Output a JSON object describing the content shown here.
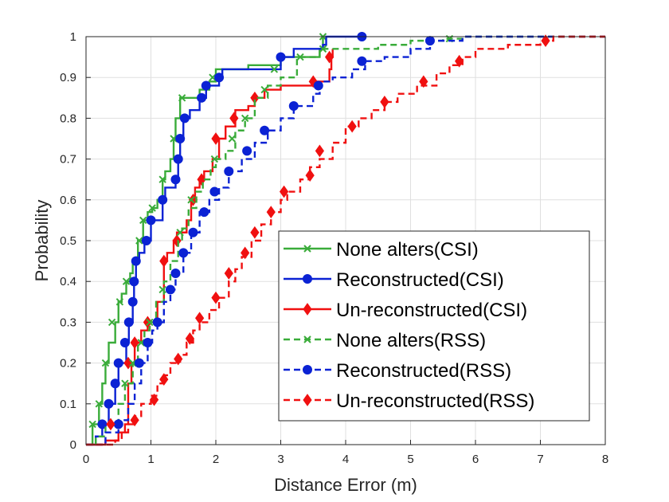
{
  "chart_data": {
    "type": "line",
    "title": "",
    "xlabel": "Distance Error (m)",
    "ylabel": "Probability",
    "xlim": [
      0,
      8
    ],
    "ylim": [
      0,
      1
    ],
    "xticks": [
      0,
      1,
      2,
      3,
      4,
      5,
      6,
      7,
      8
    ],
    "yticks": [
      0,
      0.1,
      0.2,
      0.3,
      0.4,
      0.5,
      0.6,
      0.7,
      0.8,
      0.9,
      1
    ],
    "xtick_labels": [
      "0",
      "1",
      "2",
      "3",
      "4",
      "5",
      "6",
      "7",
      "8"
    ],
    "ytick_labels": [
      "0",
      "0.1",
      "0.2",
      "0.3",
      "0.4",
      "0.5",
      "0.6",
      "0.7",
      "0.8",
      "0.9",
      "1"
    ],
    "grid": true,
    "legend_position": "lower-right",
    "series": [
      {
        "name": "None alters(CSI)",
        "color": "#3aac3a",
        "dash": "solid",
        "marker": "x",
        "points": [
          [
            0,
            0
          ],
          [
            0.1,
            0.05
          ],
          [
            0.2,
            0.1
          ],
          [
            0.25,
            0.15
          ],
          [
            0.3,
            0.2
          ],
          [
            0.35,
            0.25
          ],
          [
            0.45,
            0.3
          ],
          [
            0.5,
            0.35
          ],
          [
            0.55,
            0.37
          ],
          [
            0.62,
            0.4
          ],
          [
            0.68,
            0.42
          ],
          [
            0.72,
            0.45
          ],
          [
            0.8,
            0.5
          ],
          [
            0.88,
            0.55
          ],
          [
            0.95,
            0.57
          ],
          [
            1.02,
            0.58
          ],
          [
            1.1,
            0.6
          ],
          [
            1.18,
            0.65
          ],
          [
            1.22,
            0.67
          ],
          [
            1.3,
            0.7
          ],
          [
            1.35,
            0.75
          ],
          [
            1.38,
            0.8
          ],
          [
            1.45,
            0.85
          ],
          [
            1.6,
            0.85
          ],
          [
            1.75,
            0.87
          ],
          [
            1.9,
            0.89
          ],
          [
            2.0,
            0.92
          ],
          [
            2.5,
            0.93
          ],
          [
            3.0,
            0.95
          ],
          [
            3.6,
            0.97
          ],
          [
            3.65,
            1.0
          ]
        ],
        "markers": [
          [
            0.1,
            0.05
          ],
          [
            0.2,
            0.1
          ],
          [
            0.3,
            0.2
          ],
          [
            0.4,
            0.3
          ],
          [
            0.52,
            0.35
          ],
          [
            0.62,
            0.4
          ],
          [
            0.82,
            0.5
          ],
          [
            0.88,
            0.55
          ],
          [
            1.02,
            0.58
          ],
          [
            1.18,
            0.65
          ],
          [
            1.35,
            0.75
          ],
          [
            1.48,
            0.85
          ],
          [
            1.95,
            0.9
          ],
          [
            3.65,
            1.0
          ]
        ]
      },
      {
        "name": "Reconstructed(CSI)",
        "color": "#0b22d4",
        "dash": "solid",
        "marker": "o",
        "points": [
          [
            0,
            0
          ],
          [
            0.15,
            0.02
          ],
          [
            0.25,
            0.05
          ],
          [
            0.3,
            0.05
          ],
          [
            0.35,
            0.1
          ],
          [
            0.45,
            0.15
          ],
          [
            0.5,
            0.2
          ],
          [
            0.62,
            0.25
          ],
          [
            0.66,
            0.3
          ],
          [
            0.72,
            0.35
          ],
          [
            0.74,
            0.4
          ],
          [
            0.77,
            0.45
          ],
          [
            0.82,
            0.47
          ],
          [
            0.9,
            0.5
          ],
          [
            1.0,
            0.55
          ],
          [
            1.18,
            0.6
          ],
          [
            1.22,
            0.63
          ],
          [
            1.38,
            0.65
          ],
          [
            1.42,
            0.7
          ],
          [
            1.45,
            0.75
          ],
          [
            1.5,
            0.8
          ],
          [
            1.6,
            0.82
          ],
          [
            1.75,
            0.85
          ],
          [
            1.85,
            0.88
          ],
          [
            2.05,
            0.9
          ],
          [
            2.1,
            0.92
          ],
          [
            3.0,
            0.95
          ],
          [
            3.2,
            0.97
          ],
          [
            3.65,
            0.98
          ],
          [
            3.7,
            1.0
          ],
          [
            4.25,
            1.0
          ]
        ],
        "markers": [
          [
            0.25,
            0.05
          ],
          [
            0.35,
            0.1
          ],
          [
            0.45,
            0.15
          ],
          [
            0.5,
            0.2
          ],
          [
            0.6,
            0.25
          ],
          [
            0.66,
            0.3
          ],
          [
            0.72,
            0.35
          ],
          [
            0.74,
            0.4
          ],
          [
            0.77,
            0.45
          ],
          [
            0.93,
            0.5
          ],
          [
            1.0,
            0.55
          ],
          [
            1.18,
            0.6
          ],
          [
            1.38,
            0.65
          ],
          [
            1.42,
            0.7
          ],
          [
            1.45,
            0.75
          ],
          [
            1.52,
            0.8
          ],
          [
            1.78,
            0.85
          ],
          [
            1.85,
            0.88
          ],
          [
            2.05,
            0.9
          ],
          [
            3.0,
            0.95
          ],
          [
            4.25,
            1.0
          ]
        ]
      },
      {
        "name": "Un-reconstructed(CSI)",
        "color": "#f01010",
        "dash": "solid",
        "marker": "d",
        "points": [
          [
            0,
            0
          ],
          [
            0.3,
            0.01
          ],
          [
            0.5,
            0.03
          ],
          [
            0.6,
            0.05
          ],
          [
            0.65,
            0.15
          ],
          [
            0.7,
            0.2
          ],
          [
            0.75,
            0.25
          ],
          [
            0.85,
            0.28
          ],
          [
            0.95,
            0.3
          ],
          [
            1.1,
            0.35
          ],
          [
            1.2,
            0.45
          ],
          [
            1.25,
            0.47
          ],
          [
            1.35,
            0.5
          ],
          [
            1.4,
            0.52
          ],
          [
            1.55,
            0.55
          ],
          [
            1.62,
            0.6
          ],
          [
            1.68,
            0.63
          ],
          [
            1.75,
            0.65
          ],
          [
            1.82,
            0.67
          ],
          [
            1.95,
            0.7
          ],
          [
            2.05,
            0.75
          ],
          [
            2.15,
            0.78
          ],
          [
            2.3,
            0.82
          ],
          [
            2.4,
            0.82
          ],
          [
            2.5,
            0.83
          ],
          [
            2.6,
            0.85
          ],
          [
            2.75,
            0.87
          ],
          [
            3.0,
            0.88
          ],
          [
            3.5,
            0.89
          ],
          [
            3.75,
            0.92
          ],
          [
            3.78,
            0.95
          ],
          [
            3.8,
            0.97
          ]
        ],
        "markers": [
          [
            0.65,
            0.2
          ],
          [
            0.75,
            0.25
          ],
          [
            0.95,
            0.3
          ],
          [
            1.2,
            0.45
          ],
          [
            1.4,
            0.5
          ],
          [
            1.65,
            0.6
          ],
          [
            1.78,
            0.65
          ],
          [
            2.0,
            0.75
          ],
          [
            2.28,
            0.8
          ],
          [
            2.6,
            0.85
          ],
          [
            3.5,
            0.89
          ],
          [
            3.75,
            0.95
          ]
        ]
      },
      {
        "name": "None alters(RSS)",
        "color": "#3aac3a",
        "dash": "dashed",
        "marker": "x",
        "points": [
          [
            0,
            0
          ],
          [
            0.15,
            0.02
          ],
          [
            0.3,
            0.05
          ],
          [
            0.5,
            0.1
          ],
          [
            0.6,
            0.15
          ],
          [
            0.72,
            0.2
          ],
          [
            0.8,
            0.25
          ],
          [
            0.9,
            0.28
          ],
          [
            0.98,
            0.3
          ],
          [
            1.08,
            0.35
          ],
          [
            1.2,
            0.4
          ],
          [
            1.3,
            0.45
          ],
          [
            1.42,
            0.5
          ],
          [
            1.48,
            0.53
          ],
          [
            1.58,
            0.58
          ],
          [
            1.7,
            0.62
          ],
          [
            1.8,
            0.65
          ],
          [
            1.92,
            0.68
          ],
          [
            2.0,
            0.7
          ],
          [
            2.15,
            0.72
          ],
          [
            2.3,
            0.77
          ],
          [
            2.45,
            0.8
          ],
          [
            2.6,
            0.85
          ],
          [
            2.8,
            0.88
          ],
          [
            3.0,
            0.9
          ],
          [
            3.25,
            0.95
          ],
          [
            3.6,
            0.97
          ],
          [
            4.0,
            0.97
          ],
          [
            4.5,
            0.98
          ],
          [
            5.0,
            0.99
          ],
          [
            5.5,
            0.995
          ],
          [
            5.8,
            1.0
          ],
          [
            8,
            1.0
          ]
        ],
        "markers": [
          [
            0.6,
            0.15
          ],
          [
            0.72,
            0.2
          ],
          [
            0.85,
            0.25
          ],
          [
            0.98,
            0.3
          ],
          [
            1.18,
            0.38
          ],
          [
            1.45,
            0.52
          ],
          [
            1.62,
            0.6
          ],
          [
            1.98,
            0.7
          ],
          [
            2.25,
            0.75
          ],
          [
            2.45,
            0.8
          ],
          [
            2.75,
            0.87
          ],
          [
            2.9,
            0.92
          ],
          [
            3.3,
            0.95
          ],
          [
            3.65,
            0.97
          ],
          [
            5.6,
            0.995
          ]
        ]
      },
      {
        "name": "Reconstructed(RSS)",
        "color": "#0b22d4",
        "dash": "dashed",
        "marker": "o",
        "points": [
          [
            0,
            0
          ],
          [
            0.3,
            0.03
          ],
          [
            0.5,
            0.06
          ],
          [
            0.65,
            0.1
          ],
          [
            0.75,
            0.15
          ],
          [
            0.85,
            0.2
          ],
          [
            0.95,
            0.25
          ],
          [
            1.02,
            0.28
          ],
          [
            1.1,
            0.3
          ],
          [
            1.2,
            0.35
          ],
          [
            1.3,
            0.38
          ],
          [
            1.38,
            0.42
          ],
          [
            1.5,
            0.47
          ],
          [
            1.62,
            0.52
          ],
          [
            1.75,
            0.57
          ],
          [
            1.9,
            0.6
          ],
          [
            2.05,
            0.63
          ],
          [
            2.2,
            0.67
          ],
          [
            2.4,
            0.7
          ],
          [
            2.6,
            0.74
          ],
          [
            2.8,
            0.77
          ],
          [
            3.0,
            0.8
          ],
          [
            3.2,
            0.83
          ],
          [
            3.5,
            0.86
          ],
          [
            3.6,
            0.89
          ],
          [
            3.8,
            0.9
          ],
          [
            4.1,
            0.92
          ],
          [
            4.3,
            0.94
          ],
          [
            4.6,
            0.95
          ],
          [
            5.0,
            0.97
          ],
          [
            5.3,
            0.99
          ],
          [
            5.8,
            1.0
          ],
          [
            8,
            1.0
          ]
        ],
        "markers": [
          [
            0.5,
            0.05
          ],
          [
            0.82,
            0.2
          ],
          [
            0.95,
            0.25
          ],
          [
            1.1,
            0.3
          ],
          [
            1.3,
            0.38
          ],
          [
            1.38,
            0.42
          ],
          [
            1.5,
            0.47
          ],
          [
            1.65,
            0.52
          ],
          [
            1.82,
            0.57
          ],
          [
            1.98,
            0.62
          ],
          [
            2.2,
            0.67
          ],
          [
            2.48,
            0.72
          ],
          [
            2.75,
            0.77
          ],
          [
            3.2,
            0.83
          ],
          [
            3.58,
            0.88
          ],
          [
            4.25,
            0.94
          ],
          [
            5.3,
            0.99
          ]
        ]
      },
      {
        "name": "Un-reconstructed(RSS)",
        "color": "#f01010",
        "dash": "dashed",
        "marker": "d",
        "points": [
          [
            0,
            0
          ],
          [
            0.45,
            0.01
          ],
          [
            0.55,
            0.03
          ],
          [
            0.65,
            0.05
          ],
          [
            0.75,
            0.07
          ],
          [
            0.85,
            0.1
          ],
          [
            1.0,
            0.12
          ],
          [
            1.1,
            0.15
          ],
          [
            1.2,
            0.17
          ],
          [
            1.3,
            0.2
          ],
          [
            1.45,
            0.22
          ],
          [
            1.55,
            0.25
          ],
          [
            1.65,
            0.28
          ],
          [
            1.75,
            0.3
          ],
          [
            1.9,
            0.33
          ],
          [
            2.05,
            0.36
          ],
          [
            2.2,
            0.4
          ],
          [
            2.3,
            0.43
          ],
          [
            2.4,
            0.46
          ],
          [
            2.55,
            0.5
          ],
          [
            2.7,
            0.54
          ],
          [
            2.85,
            0.57
          ],
          [
            3.0,
            0.6
          ],
          [
            3.1,
            0.62
          ],
          [
            3.3,
            0.65
          ],
          [
            3.45,
            0.68
          ],
          [
            3.6,
            0.7
          ],
          [
            3.8,
            0.74
          ],
          [
            4.0,
            0.78
          ],
          [
            4.2,
            0.8
          ],
          [
            4.4,
            0.82
          ],
          [
            4.6,
            0.84
          ],
          [
            4.8,
            0.86
          ],
          [
            5.1,
            0.88
          ],
          [
            5.4,
            0.91
          ],
          [
            5.6,
            0.93
          ],
          [
            5.8,
            0.95
          ],
          [
            6.0,
            0.97
          ],
          [
            6.5,
            0.98
          ],
          [
            7.0,
            0.99
          ],
          [
            7.2,
            1.0
          ],
          [
            8,
            1.0
          ]
        ],
        "markers": [
          [
            0.38,
            0.05
          ],
          [
            0.75,
            0.06
          ],
          [
            1.05,
            0.11
          ],
          [
            1.2,
            0.16
          ],
          [
            1.42,
            0.21
          ],
          [
            1.6,
            0.26
          ],
          [
            1.75,
            0.31
          ],
          [
            2.0,
            0.36
          ],
          [
            2.2,
            0.42
          ],
          [
            2.45,
            0.47
          ],
          [
            2.6,
            0.52
          ],
          [
            2.85,
            0.57
          ],
          [
            3.05,
            0.62
          ],
          [
            3.45,
            0.66
          ],
          [
            3.6,
            0.72
          ],
          [
            4.1,
            0.78
          ],
          [
            4.6,
            0.84
          ],
          [
            5.2,
            0.89
          ],
          [
            5.75,
            0.94
          ],
          [
            7.08,
            0.99
          ]
        ]
      }
    ]
  }
}
